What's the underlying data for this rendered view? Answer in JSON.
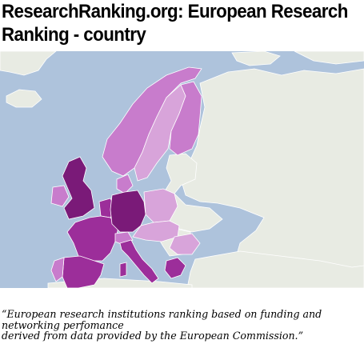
{
  "title": {
    "line1": "ResearchRanking.org: European Research",
    "line2": "Ranking - country"
  },
  "map": {
    "colors": {
      "sea": "#aec3dc",
      "land_other": "#e8ebe3",
      "tier_dark": "#7a1a78",
      "tier_mid": "#9c2e9a",
      "tier_light": "#c87ccc",
      "tier_pale": "#d8a4da"
    }
  },
  "caption": {
    "line1": "“European research institutions ranking based on funding and",
    "line2": "networking perfomance",
    "line3": "derived from data provided by the European Commission.”"
  }
}
